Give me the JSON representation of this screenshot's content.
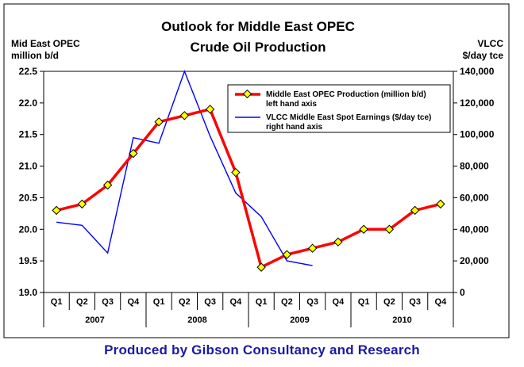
{
  "chart_data": {
    "type": "line",
    "title_lines": [
      "Outlook for Middle East OPEC",
      "Crude Oil Production"
    ],
    "left_axis_label_lines": [
      "Mid East OPEC",
      "million b/d"
    ],
    "right_axis_label_lines": [
      "VLCC",
      "$/day tce"
    ],
    "y_left": {
      "min": 19.0,
      "max": 22.5,
      "ticks": [
        "19.0",
        "19.5",
        "20.0",
        "20.5",
        "21.0",
        "21.5",
        "22.0",
        "22.5"
      ]
    },
    "y_right": {
      "min": 0,
      "max": 140000,
      "ticks": [
        "0",
        "20,000",
        "40,000",
        "60,000",
        "80,000",
        "100,000",
        "120,000",
        "140,000"
      ]
    },
    "quarters": [
      "Q1",
      "Q2",
      "Q3",
      "Q4",
      "Q1",
      "Q2",
      "Q3",
      "Q4",
      "Q1",
      "Q2",
      "Q3",
      "Q4",
      "Q1",
      "Q2",
      "Q3",
      "Q4"
    ],
    "years": [
      "2007",
      "2008",
      "2009",
      "2010"
    ],
    "series": [
      {
        "name": "Middle East OPEC Production (million b/d)",
        "name_line2": "left hand axis",
        "axis": "left",
        "color": "#ff0000",
        "marker_color": "#ffff00",
        "values": [
          20.3,
          20.4,
          20.7,
          21.2,
          21.7,
          21.8,
          21.9,
          20.9,
          19.4,
          19.6,
          19.7,
          19.8,
          20.0,
          20.0,
          20.3,
          20.4
        ]
      },
      {
        "name": "VLCC Middle East Spot Earnings ($/day tce)",
        "name_line2": "right hand axis",
        "axis": "right",
        "color": "#0000ff",
        "x": [
          1,
          2,
          3,
          4,
          5,
          6,
          7,
          8,
          9,
          10,
          11
        ],
        "values": [
          44500,
          42500,
          25000,
          98000,
          94500,
          140000,
          99000,
          63000,
          48000,
          20000,
          17000
        ]
      }
    ],
    "grid": false,
    "legend_position": "top-right"
  },
  "footer": {
    "credit": "Produced by Gibson Consultancy and Research"
  }
}
